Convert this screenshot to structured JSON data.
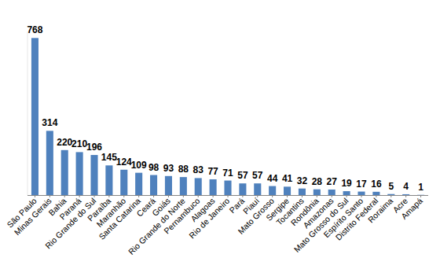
{
  "chart_data": {
    "type": "bar",
    "categories": [
      "São Paulo",
      "Minas Gerais",
      "Bahia",
      "Paraná",
      "Rio Grande do Sul",
      "Paraíba",
      "Maranhão",
      "Santa Catarina",
      "Ceará",
      "Goiás",
      "Rio Grande do Norte",
      "Pernambuco",
      "Alagoas",
      "Rio de Janeiro",
      "Pará",
      "Piauí",
      "Mato Grosso",
      "Sergipe",
      "Tocantins",
      "Rondônia",
      "Amazonas",
      "Mato Grosso do Sul",
      "Espírito Santo",
      "Distrito Federal",
      "Roraima",
      "Acre",
      "Amapá"
    ],
    "values": [
      768,
      314,
      220,
      210,
      196,
      145,
      124,
      109,
      98,
      93,
      88,
      83,
      77,
      71,
      57,
      57,
      44,
      41,
      32,
      28,
      27,
      19,
      17,
      16,
      5,
      4,
      1
    ],
    "color": "#4f81bd",
    "ylim": [
      0,
      800
    ],
    "yticks": [],
    "grid": false,
    "data_labels": true,
    "tick_labels": "x"
  }
}
